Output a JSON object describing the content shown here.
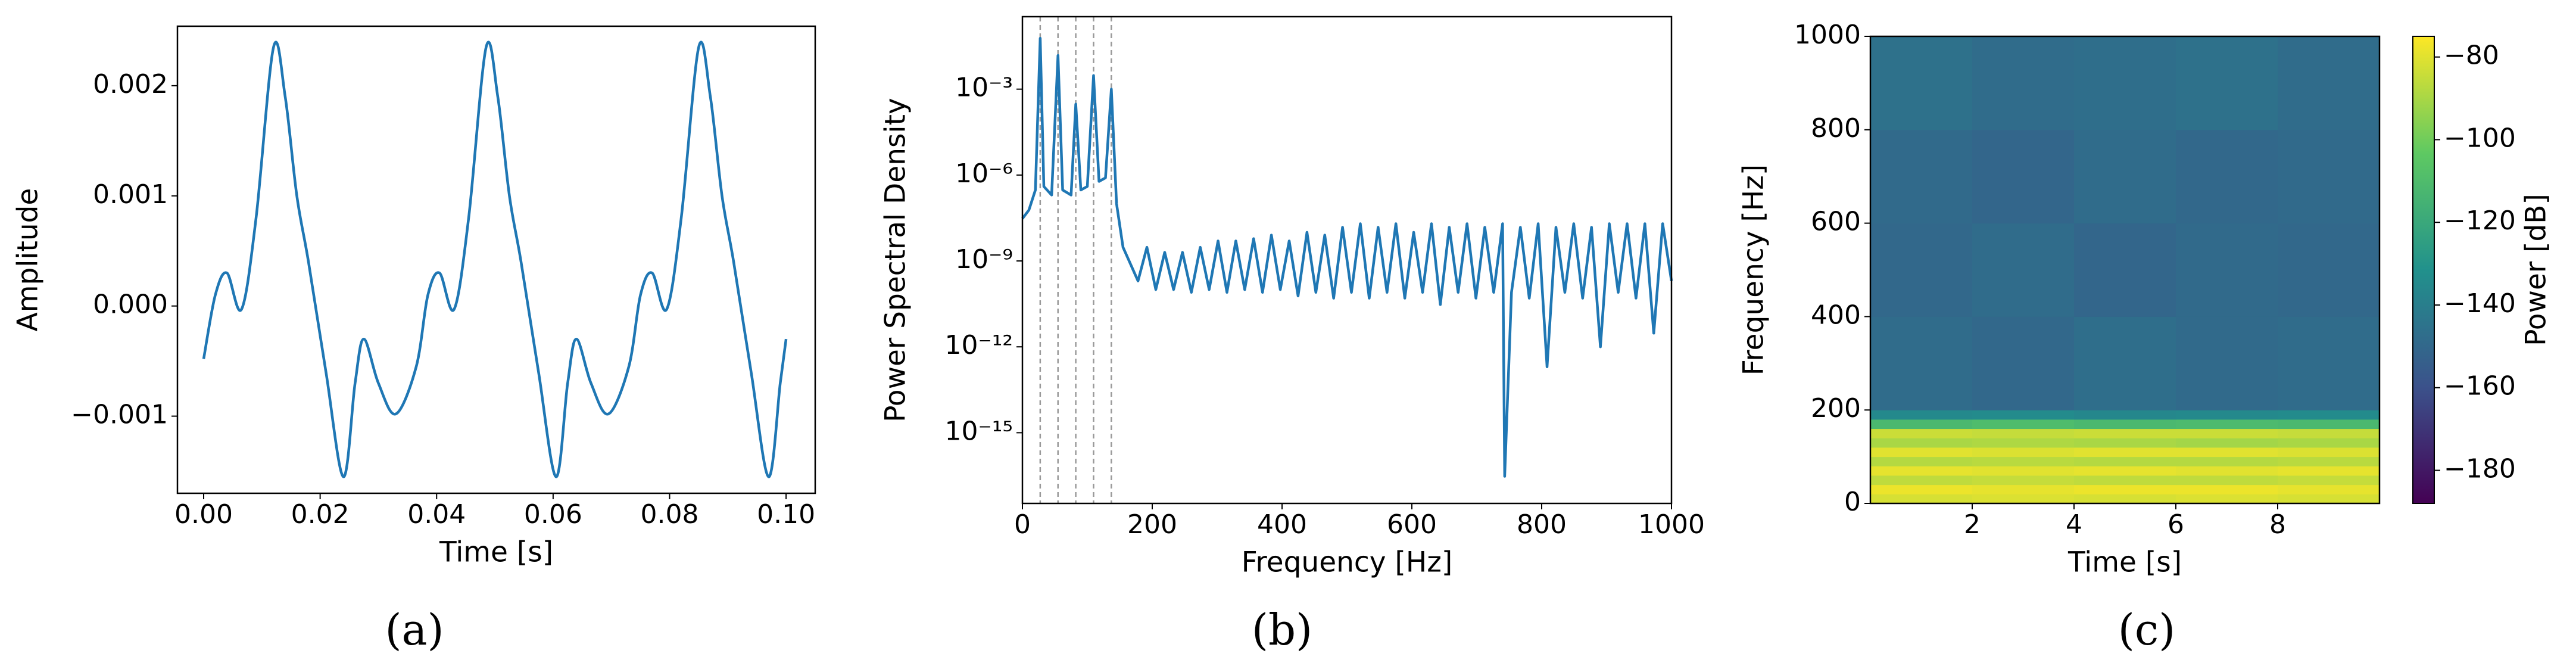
{
  "chart_data": [
    {
      "type": "line",
      "caption": "(a)",
      "x_label": "Time [s]",
      "y_label": "Amplitude",
      "color": "#1f77b4",
      "x": [
        0,
        0.002,
        0.004,
        0.0065,
        0.009,
        0.012,
        0.014,
        0.016,
        0.018,
        0.021,
        0.024,
        0.026,
        0.0275,
        0.03,
        0.033,
        0.0365,
        0.0385,
        0.0405,
        0.043,
        0.0455,
        0.0485,
        0.0505,
        0.0525,
        0.0545,
        0.0575,
        0.0605,
        0.0625,
        0.064,
        0.0665,
        0.0695,
        0.073,
        0.075,
        0.077,
        0.0795,
        0.082,
        0.085,
        0.087,
        0.089,
        0.091,
        0.094,
        0.097,
        0.099,
        0.1
      ],
      "values": [
        -0.00048,
        0.0001,
        0.0003,
        -3e-05,
        0.0008,
        0.00235,
        0.0019,
        0.001,
        0.0004,
        -0.0006,
        -0.00155,
        -0.0007,
        -0.0003,
        -0.0007,
        -0.00098,
        -0.00055,
        0.0001,
        0.0003,
        -3e-05,
        0.0008,
        0.00235,
        0.0019,
        0.001,
        0.0004,
        -0.0006,
        -0.00155,
        -0.0007,
        -0.0003,
        -0.0007,
        -0.00098,
        -0.00055,
        0.0001,
        0.0003,
        -3e-05,
        0.0008,
        0.00235,
        0.0019,
        0.001,
        0.0004,
        -0.0006,
        -0.00155,
        -0.0007,
        -0.0003
      ],
      "xlim": [
        -0.0045,
        0.105
      ],
      "ylim": [
        -0.0017,
        0.00254
      ],
      "xticks": [
        {
          "value": 0,
          "label": "0.00"
        },
        {
          "value": 0.02,
          "label": "0.02"
        },
        {
          "value": 0.04,
          "label": "0.04"
        },
        {
          "value": 0.06,
          "label": "0.06"
        },
        {
          "value": 0.08,
          "label": "0.08"
        },
        {
          "value": 0.1,
          "label": "0.10"
        }
      ],
      "yticks": [
        {
          "value": -0.001,
          "label": "−0.001"
        },
        {
          "value": 0,
          "label": "0.000"
        },
        {
          "value": 0.001,
          "label": "0.001"
        },
        {
          "value": 0.002,
          "label": "0.002"
        }
      ]
    },
    {
      "type": "line",
      "caption": "(b)",
      "x_label": "Frequency [Hz]",
      "y_label": "Power Spectral Density",
      "color": "#1f77b4",
      "yscale": "log",
      "vlines": [
        27.4,
        54.8,
        82.2,
        109.6,
        137
      ],
      "vline_color": "#999999",
      "x": [
        0,
        10,
        20,
        27.4,
        33,
        45,
        54.8,
        62,
        75,
        82.2,
        90,
        100,
        109.6,
        118,
        128,
        137,
        145,
        155,
        164.4,
        178.1,
        191.8,
        205.5,
        219.2,
        232.9,
        246.6,
        260.3,
        274,
        287.7,
        301.4,
        315.1,
        328.8,
        342.5,
        356.2,
        369.9,
        383.6,
        397.3,
        411,
        424.7,
        438.4,
        452.1,
        465.8,
        479.5,
        493.2,
        506.9,
        520.6,
        534.3,
        548,
        561.7,
        575.4,
        589.1,
        602.8,
        616.5,
        630.2,
        643.9,
        657.6,
        671.3,
        685,
        698.7,
        712.4,
        726.1,
        739.8,
        743,
        753.5,
        767.2,
        780.9,
        794.6,
        808.3,
        822,
        835.7,
        849.4,
        863.1,
        876.8,
        890.5,
        904.2,
        917.9,
        931.6,
        945.3,
        959,
        972.7,
        986.4,
        1000
      ],
      "values": [
        3e-08,
        6e-08,
        3e-07,
        0.06,
        4e-07,
        2e-07,
        0.015,
        3e-07,
        2e-07,
        0.0003,
        3e-07,
        4e-07,
        0.003,
        6e-07,
        8e-07,
        0.001,
        1e-07,
        3e-09,
        1e-09,
        2e-10,
        3e-09,
        1e-10,
        2e-09,
        1e-10,
        2e-09,
        8e-11,
        3e-09,
        1e-10,
        5e-09,
        8e-11,
        5e-09,
        1e-10,
        6e-09,
        8e-11,
        8e-09,
        1e-10,
        5e-09,
        6e-11,
        1e-08,
        8e-11,
        8e-09,
        5e-11,
        1.5e-08,
        8e-11,
        2e-08,
        5e-11,
        1.5e-08,
        8e-11,
        2e-08,
        5e-11,
        1e-08,
        8e-11,
        2e-08,
        3e-11,
        1.5e-08,
        8e-11,
        2e-08,
        5e-11,
        1.5e-08,
        8e-11,
        2e-08,
        3e-17,
        8e-11,
        1.5e-08,
        5e-11,
        2e-08,
        2e-13,
        1.5e-08,
        8e-11,
        2e-08,
        5e-11,
        1.5e-08,
        1e-12,
        2e-08,
        8e-11,
        2e-08,
        5e-11,
        2e-08,
        3e-12,
        2e-08,
        2e-10
      ],
      "xlim": [
        0,
        1000
      ],
      "ylim": [
        3.4e-18,
        0.34
      ],
      "xticks": [
        0,
        200,
        400,
        600,
        800,
        1000
      ],
      "yticks": [
        {
          "value": 1e-15,
          "label": "10⁻¹⁵"
        },
        {
          "value": 1e-12,
          "label": "10⁻¹²"
        },
        {
          "value": 1e-09,
          "label": "10⁻⁹"
        },
        {
          "value": 1e-06,
          "label": "10⁻⁶"
        },
        {
          "value": 0.001,
          "label": "10⁻³"
        }
      ]
    },
    {
      "type": "heatmap",
      "caption": "(c)",
      "x_label": "Time [s]",
      "y_label": "Frequency [Hz]",
      "colorbar_label": "Power [dB]",
      "colormap": "viridis",
      "x_bins": [
        0,
        2,
        4,
        6,
        8,
        10
      ],
      "y_bins": [
        0,
        20,
        40,
        60,
        80,
        100,
        120,
        140,
        160,
        180,
        200,
        400,
        600,
        800,
        1000
      ],
      "values": [
        [
          -82,
          -81,
          -82,
          -81,
          -82
        ],
        [
          -78,
          -79,
          -78,
          -78,
          -79
        ],
        [
          -86,
          -85,
          -86,
          -86,
          -85
        ],
        [
          -79,
          -80,
          -79,
          -80,
          -79
        ],
        [
          -88,
          -87,
          -88,
          -88,
          -87
        ],
        [
          -80,
          -81,
          -80,
          -80,
          -81
        ],
        [
          -90,
          -89,
          -90,
          -91,
          -90
        ],
        [
          -84,
          -85,
          -84,
          -84,
          -85
        ],
        [
          -112,
          -110,
          -112,
          -111,
          -112
        ],
        [
          -135,
          -134,
          -136,
          -135,
          -134
        ],
        [
          -148,
          -150,
          -147,
          -149,
          -148
        ],
        [
          -150,
          -148,
          -151,
          -149,
          -150
        ],
        [
          -149,
          -151,
          -148,
          -150,
          -149
        ],
        [
          -146,
          -148,
          -147,
          -146,
          -148
        ]
      ],
      "xlim": [
        0,
        10
      ],
      "ylim": [
        0,
        1000
      ],
      "clim": [
        -188,
        -75
      ],
      "xticks": [
        2,
        4,
        6,
        8
      ],
      "yticks": [
        0,
        200,
        400,
        600,
        800,
        1000
      ],
      "cticks": [
        {
          "value": -180,
          "label": "−180"
        },
        {
          "value": -160,
          "label": "−160"
        },
        {
          "value": -140,
          "label": "−140"
        },
        {
          "value": -120,
          "label": "−120"
        },
        {
          "value": -100,
          "label": "−100"
        },
        {
          "value": -80,
          "label": "−80"
        }
      ]
    }
  ]
}
